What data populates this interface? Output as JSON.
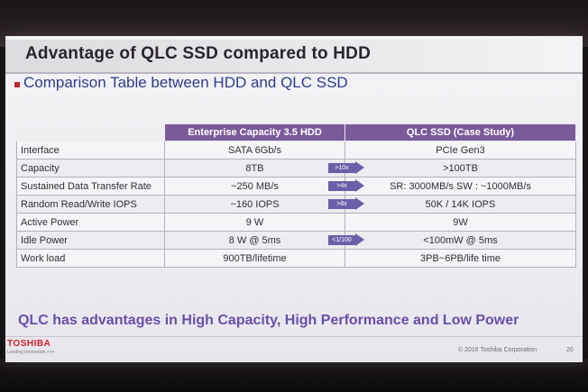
{
  "slide": {
    "title": "Advantage of QLC SSD compared to HDD",
    "subtitle": "Comparison Table between HDD and QLC SSD",
    "conclusion": "QLC has advantages in High Capacity, High Performance and Low Power"
  },
  "table": {
    "headers": [
      "",
      "Enterprise Capacity 3.5 HDD",
      "QLC SSD (Case Study)"
    ],
    "rows": [
      {
        "label": "Interface",
        "hdd": "SATA 6Gb/s",
        "arrow": "",
        "qlc": "PCIe Gen3"
      },
      {
        "label": "Capacity",
        "hdd": "8TB",
        "arrow": ">10x",
        "qlc": ">100TB"
      },
      {
        "label": "Sustained Data Transfer Rate",
        "hdd": "~250 MB/s",
        "arrow": ">4x",
        "qlc": "SR: 3000MB/s  SW : ~1000MB/s"
      },
      {
        "label": "Random Read/Write IOPS",
        "hdd": "~160 IOPS",
        "arrow": ">8x",
        "qlc": "50K / 14K IOPS"
      },
      {
        "label": "Active Power",
        "hdd": "9 W",
        "arrow": "",
        "qlc": "9W"
      },
      {
        "label": "Idle Power",
        "hdd": "8 W @ 5ms",
        "arrow": "<1/100",
        "qlc": "<100mW @ 5ms"
      },
      {
        "label": "Work load",
        "hdd": "900TB/lifetime",
        "arrow": "",
        "qlc": "3PB~6PB/life time"
      }
    ]
  },
  "footer": {
    "logo": "TOSHIBA",
    "tagline": "Leading Innovation >>>",
    "copyright": "© 2016 Toshiba Corporation",
    "page_number": "20"
  }
}
